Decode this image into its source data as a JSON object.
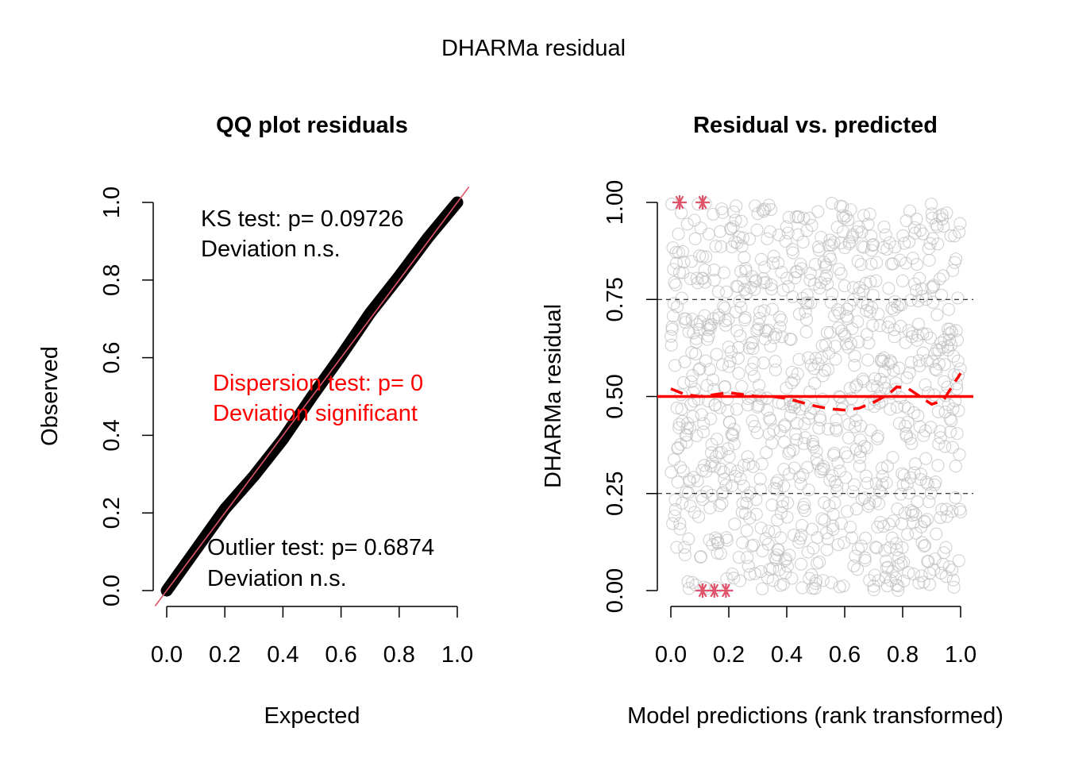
{
  "figure": {
    "title": "DHARMa residual"
  },
  "colors": {
    "black": "#000000",
    "red": "#ff0000",
    "qq_line": "#df536b",
    "outlier_star": "#df536b",
    "points": "#bebebe",
    "grid_dash": "#000000"
  },
  "chart_data": [
    {
      "type": "scatter",
      "title": "QQ plot residuals",
      "xlabel": "Expected",
      "ylabel": "Observed",
      "xlim": [
        0,
        1
      ],
      "ylim": [
        0,
        1
      ],
      "x_ticks": [
        "0.0",
        "0.2",
        "0.4",
        "0.6",
        "0.8",
        "1.0"
      ],
      "y_ticks": [
        "0.0",
        "0.2",
        "0.4",
        "0.6",
        "0.8",
        "1.0"
      ],
      "reference_line": {
        "slope": 1,
        "intercept": 0
      },
      "qq_points": [
        [
          0,
          0
        ],
        [
          0.1,
          0.105
        ],
        [
          0.2,
          0.21
        ],
        [
          0.3,
          0.295
        ],
        [
          0.4,
          0.39
        ],
        [
          0.5,
          0.5
        ],
        [
          0.6,
          0.605
        ],
        [
          0.7,
          0.715
        ],
        [
          0.8,
          0.81
        ],
        [
          0.9,
          0.91
        ],
        [
          1,
          1
        ]
      ],
      "annotations": {
        "ks_line1": "KS test: p= 0.09726",
        "ks_line2": "Deviation  n.s.",
        "disp_line1": "Dispersion test: p= 0",
        "disp_line2": "Deviation  significant",
        "out_line1": "Outlier test: p= 0.6874",
        "out_line2": "Deviation  n.s."
      }
    },
    {
      "type": "scatter",
      "title": "Residual vs. predicted",
      "xlabel": "Model predictions (rank transformed)",
      "ylabel": "DHARMa residual",
      "xlim": [
        0,
        1
      ],
      "ylim": [
        0,
        1
      ],
      "x_ticks": [
        "0.0",
        "0.2",
        "0.4",
        "0.6",
        "0.8",
        "1.0"
      ],
      "y_ticks": [
        "0.00",
        "0.25",
        "0.50",
        "0.75",
        "1.00"
      ],
      "reference_lines_dashed": [
        0.25,
        0.75
      ],
      "reference_line_solid": 0.5,
      "quantile_curve_050": [
        [
          0,
          0.52
        ],
        [
          0.05,
          0.505
        ],
        [
          0.1,
          0.5
        ],
        [
          0.15,
          0.505
        ],
        [
          0.2,
          0.51
        ],
        [
          0.25,
          0.505
        ],
        [
          0.3,
          0.5
        ],
        [
          0.35,
          0.5
        ],
        [
          0.4,
          0.495
        ],
        [
          0.45,
          0.485
        ],
        [
          0.5,
          0.475
        ],
        [
          0.55,
          0.468
        ],
        [
          0.6,
          0.465
        ],
        [
          0.65,
          0.47
        ],
        [
          0.7,
          0.485
        ],
        [
          0.75,
          0.505
        ],
        [
          0.78,
          0.525
        ],
        [
          0.82,
          0.52
        ],
        [
          0.86,
          0.5
        ],
        [
          0.9,
          0.48
        ],
        [
          0.94,
          0.49
        ],
        [
          0.97,
          0.525
        ],
        [
          1,
          0.56
        ]
      ],
      "outliers": [
        [
          0.03,
          1.0
        ],
        [
          0.11,
          1.0
        ],
        [
          0.11,
          0.0
        ],
        [
          0.15,
          0.0
        ],
        [
          0.19,
          0.0
        ]
      ],
      "n_points": 1000
    }
  ]
}
